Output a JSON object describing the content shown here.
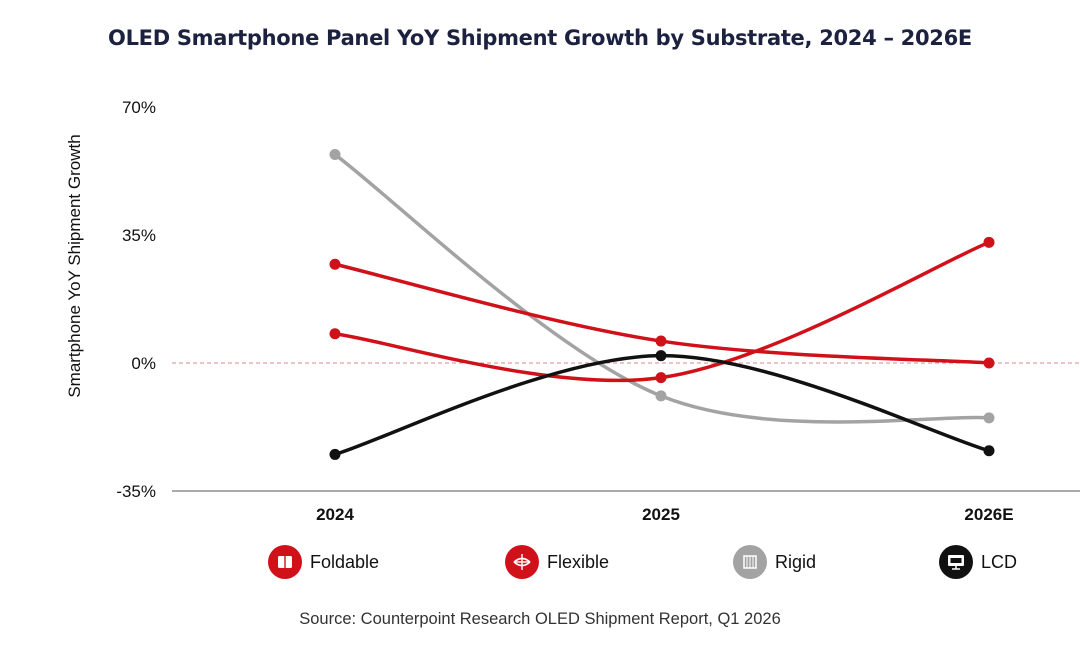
{
  "chart_data": {
    "type": "line",
    "title": "OLED Smartphone Panel YoY Shipment Growth by Substrate, 2024 – 2026E",
    "ylabel": "Smartphone YoY Shipment Growth",
    "xlabel": "",
    "categories": [
      "2024",
      "2025",
      "2026E"
    ],
    "ylim": [
      -35,
      70
    ],
    "yticks": [
      -35,
      0,
      35,
      70
    ],
    "ytick_labels": [
      "-35%",
      "0%",
      "35%",
      "70%"
    ],
    "zero_reference_line": true,
    "series": [
      {
        "name": "Foldable",
        "values": [
          8,
          -4,
          33
        ],
        "color": "#d0111a"
      },
      {
        "name": "Flexible",
        "values": [
          27,
          6,
          0
        ],
        "color": "#d0111a"
      },
      {
        "name": "Rigid",
        "values": [
          57,
          -9,
          -15
        ],
        "color": "#a3a3a3"
      },
      {
        "name": "LCD",
        "values": [
          -25,
          2,
          -24
        ],
        "color": "#111111"
      }
    ],
    "legend": [
      {
        "label": "Foldable",
        "icon": "foldable-phone-icon",
        "color": "#d0111a"
      },
      {
        "label": "Flexible",
        "icon": "flexible-panel-icon",
        "color": "#d0111a"
      },
      {
        "label": "Rigid",
        "icon": "rigid-panel-icon",
        "color": "#a3a3a3"
      },
      {
        "label": "LCD",
        "icon": "lcd-screen-icon",
        "color": "#111111"
      }
    ],
    "legend_position": "bottom",
    "source": "Source: Counterpoint Research OLED Shipment Report, Q1 2026"
  }
}
